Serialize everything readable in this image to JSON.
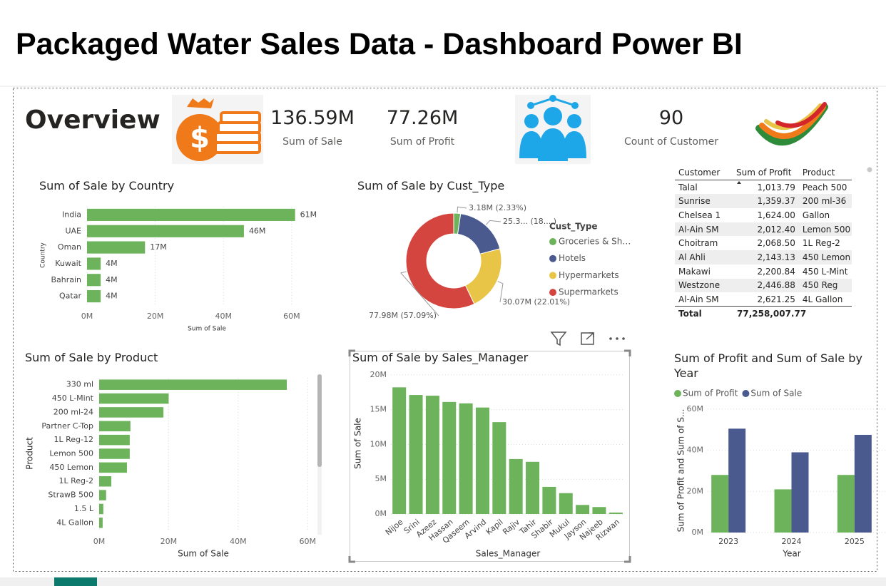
{
  "header": {
    "title": "Packaged Water Sales Data - Dashboard Power BI"
  },
  "overview": {
    "title": "Overview",
    "kpis": [
      {
        "value": "136.59M",
        "label": "Sum of Sale"
      },
      {
        "value": "77.26M",
        "label": "Sum of Profit"
      },
      {
        "value": "90",
        "label": "Count of Customer"
      }
    ]
  },
  "table": {
    "columns": [
      "Customer",
      "Sum of Profit",
      "Product"
    ],
    "rows": [
      [
        "Talal",
        "1,013.79",
        "Peach 500"
      ],
      [
        "Sunrise",
        "1,359.37",
        "200 ml-36"
      ],
      [
        "Chelsea 1",
        "1,624.00",
        "Gallon"
      ],
      [
        "Al-Ain SM",
        "2,012.40",
        "Lemon 500"
      ],
      [
        "Choitram",
        "2,068.50",
        "1L Reg-2"
      ],
      [
        "Al Ahli",
        "2,143.13",
        "450 Lemon"
      ],
      [
        "Makawi",
        "2,200.84",
        "450 L-Mint"
      ],
      [
        "Westzone",
        "2,446.88",
        "450 Reg"
      ],
      [
        "Al-Ain SM",
        "2,621.25",
        "4L Gallon"
      ]
    ],
    "total": [
      "Total",
      "77,258,007.77"
    ]
  },
  "chart_data": [
    {
      "type": "hbar",
      "title": "Sum of Sale by Country",
      "categories": [
        "India",
        "UAE",
        "Oman",
        "Kuwait",
        "Bahrain",
        "Qatar"
      ],
      "values": [
        61,
        46,
        17,
        4,
        4,
        4
      ],
      "value_labels": [
        "61M",
        "46M",
        "17M",
        "4M",
        "4M",
        "4M"
      ],
      "color": "#6db35b",
      "xlim": [
        0,
        64
      ],
      "xticks": [
        {
          "value": 0,
          "label": "0M"
        },
        {
          "value": 20,
          "label": "20M"
        },
        {
          "value": 40,
          "label": "40M"
        },
        {
          "value": 60,
          "label": "60M"
        }
      ],
      "xlabel": "Sum of Sale",
      "ylabel": "Country",
      "grid": true
    },
    {
      "type": "pie",
      "title": "Sum of Sale by Cust_Type",
      "legend_title": "Cust_Type",
      "categories": [
        "Groceries & Sh…",
        "Hotels",
        "Hypermarkets",
        "Supermarkets"
      ],
      "values": [
        3.18,
        25.36,
        30.07,
        77.98
      ],
      "value_labels": [
        "3.18M (2.33%)",
        "25.3... (18....)",
        "30.07M (22.01%)",
        "77.98M (57.09%)"
      ],
      "colors": [
        "#6db35b",
        "#4a5a8f",
        "#e8c547",
        "#d4453f"
      ]
    },
    {
      "type": "hbar",
      "title": "Sum of Sale by Product",
      "categories": [
        "330 ml",
        "450 L-Mint",
        "200 ml-24",
        "Partner C-Top",
        "1L Reg-12",
        "Lemon 500",
        "450 Lemon",
        "1L Reg-2",
        "StrawB 500",
        "1.5 L",
        "4L Gallon"
      ],
      "values": [
        54,
        20,
        18.5,
        9,
        8.8,
        8.8,
        8,
        3.5,
        2,
        1.2,
        1
      ],
      "color": "#6db35b",
      "xlim": [
        0,
        62
      ],
      "xticks": [
        {
          "value": 0,
          "label": "0M"
        },
        {
          "value": 20,
          "label": "20M"
        },
        {
          "value": 40,
          "label": "40M"
        },
        {
          "value": 60,
          "label": "60M"
        }
      ],
      "xlabel": "Sum of Sale",
      "ylabel": "Product",
      "grid": true
    },
    {
      "type": "bar",
      "title": "Sum of Sale by Sales_Manager",
      "categories": [
        "Nijoe",
        "Srini",
        "Azeez",
        "Hassan",
        "Qaseem",
        "Arvind",
        "Kapil",
        "Rajiv",
        "Tahir",
        "Shabir",
        "Mukul",
        "Jayson",
        "Najeeb",
        "Rizwan"
      ],
      "values": [
        18.2,
        17.1,
        17,
        16.1,
        15.9,
        15.3,
        13.2,
        7.9,
        7.5,
        3.9,
        3,
        1.3,
        1,
        0.2
      ],
      "color": "#6db35b",
      "ylim": [
        0,
        21
      ],
      "yticks": [
        {
          "value": 0,
          "label": "0M"
        },
        {
          "value": 5,
          "label": "5M"
        },
        {
          "value": 10,
          "label": "10M"
        },
        {
          "value": 15,
          "label": "15M"
        },
        {
          "value": 20,
          "label": "20M"
        }
      ],
      "xlabel": "Sales_Manager",
      "ylabel": "Sum of Sale",
      "grid": true
    },
    {
      "type": "bar",
      "title": "Sum of Profit and Sum of Sale by Year",
      "categories": [
        "2023",
        "2024",
        "2025"
      ],
      "series": [
        {
          "name": "Sum of Profit",
          "color": "#6db35b",
          "values": [
            28,
            21,
            28
          ]
        },
        {
          "name": "Sum of Sale",
          "color": "#4a5a8f",
          "values": [
            50.5,
            39,
            47.5
          ]
        }
      ],
      "ylim": [
        0,
        61
      ],
      "yticks": [
        {
          "value": 0,
          "label": "0M"
        },
        {
          "value": 20,
          "label": "20M"
        },
        {
          "value": 40,
          "label": "40M"
        },
        {
          "value": 60,
          "label": "60M"
        }
      ],
      "xlabel": "Year",
      "ylabel": "Sum of Profit and Sum of S...",
      "grid": true
    }
  ]
}
